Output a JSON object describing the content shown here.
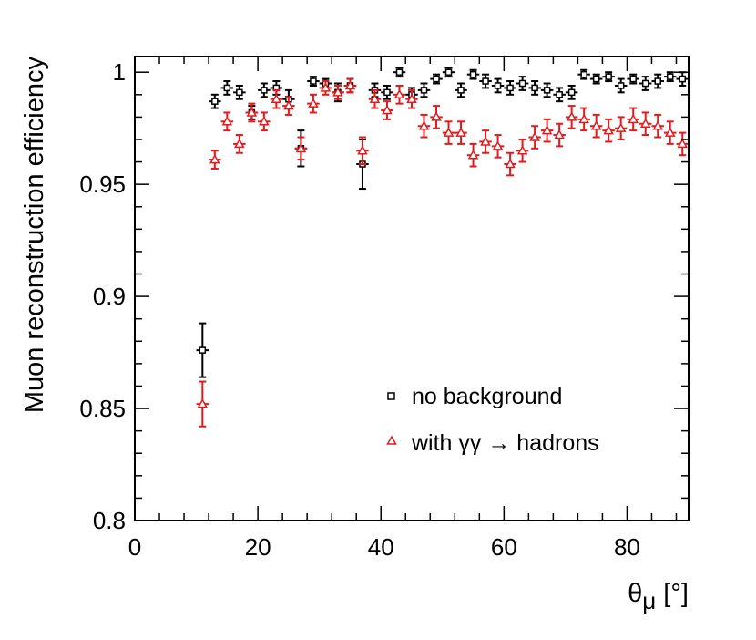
{
  "chart_data": {
    "type": "scatter",
    "title": "",
    "xlabel": "θμ [°]",
    "xlabel_main": "θ",
    "xlabel_sub": "μ",
    "xlabel_unit": " [°]",
    "ylabel": "Muon reconstruction efficiency",
    "xlim": [
      0,
      90
    ],
    "ylim": [
      0.8,
      1.007
    ],
    "x_ticks": [
      0,
      20,
      40,
      60,
      80
    ],
    "x_tick_labels": [
      "0",
      "20",
      "40",
      "60",
      "80"
    ],
    "y_ticks": [
      0.8,
      0.85,
      0.9,
      0.95,
      1.0
    ],
    "y_tick_labels": [
      "0.8",
      "0.85",
      "0.9",
      "0.95",
      "1"
    ],
    "grid": false,
    "legend_position": "bottom-right",
    "series": [
      {
        "name": "no background",
        "marker": "open-square",
        "color": "#000000",
        "x_error": 1,
        "points": [
          {
            "x": 11,
            "y": 0.876,
            "err": 0.012
          },
          {
            "x": 13,
            "y": 0.987,
            "err": 0.003
          },
          {
            "x": 15,
            "y": 0.993,
            "err": 0.003
          },
          {
            "x": 17,
            "y": 0.991,
            "err": 0.003
          },
          {
            "x": 19,
            "y": 0.982,
            "err": 0.003
          },
          {
            "x": 21,
            "y": 0.992,
            "err": 0.003
          },
          {
            "x": 23,
            "y": 0.993,
            "err": 0.003
          },
          {
            "x": 25,
            "y": 0.988,
            "err": 0.004
          },
          {
            "x": 27,
            "y": 0.966,
            "err": 0.008
          },
          {
            "x": 29,
            "y": 0.996,
            "err": 0.002
          },
          {
            "x": 31,
            "y": 0.995,
            "err": 0.002
          },
          {
            "x": 33,
            "y": 0.991,
            "err": 0.004
          },
          {
            "x": 35,
            "y": 0.994,
            "err": 0.003
          },
          {
            "x": 37,
            "y": 0.959,
            "err": 0.011
          },
          {
            "x": 39,
            "y": 0.992,
            "err": 0.003
          },
          {
            "x": 41,
            "y": 0.991,
            "err": 0.003
          },
          {
            "x": 43,
            "y": 1.0,
            "err": 0.002
          },
          {
            "x": 45,
            "y": 0.99,
            "err": 0.003
          },
          {
            "x": 47,
            "y": 0.992,
            "err": 0.003
          },
          {
            "x": 49,
            "y": 0.997,
            "err": 0.002
          },
          {
            "x": 51,
            "y": 1.0,
            "err": 0.002
          },
          {
            "x": 53,
            "y": 0.992,
            "err": 0.003
          },
          {
            "x": 55,
            "y": 0.999,
            "err": 0.002
          },
          {
            "x": 57,
            "y": 0.996,
            "err": 0.003
          },
          {
            "x": 59,
            "y": 0.994,
            "err": 0.003
          },
          {
            "x": 61,
            "y": 0.993,
            "err": 0.003
          },
          {
            "x": 63,
            "y": 0.995,
            "err": 0.003
          },
          {
            "x": 65,
            "y": 0.993,
            "err": 0.003
          },
          {
            "x": 67,
            "y": 0.992,
            "err": 0.003
          },
          {
            "x": 69,
            "y": 0.99,
            "err": 0.003
          },
          {
            "x": 71,
            "y": 0.991,
            "err": 0.003
          },
          {
            "x": 73,
            "y": 0.999,
            "err": 0.002
          },
          {
            "x": 75,
            "y": 0.997,
            "err": 0.002
          },
          {
            "x": 77,
            "y": 0.998,
            "err": 0.002
          },
          {
            "x": 79,
            "y": 0.994,
            "err": 0.003
          },
          {
            "x": 81,
            "y": 0.997,
            "err": 0.002
          },
          {
            "x": 83,
            "y": 0.995,
            "err": 0.003
          },
          {
            "x": 85,
            "y": 0.996,
            "err": 0.003
          },
          {
            "x": 87,
            "y": 0.998,
            "err": 0.002
          },
          {
            "x": 89,
            "y": 0.997,
            "err": 0.003
          }
        ]
      },
      {
        "name": "with γγ → hadrons",
        "marker": "open-triangle",
        "color": "#e31a1c",
        "x_error": 1,
        "points": [
          {
            "x": 11,
            "y": 0.852,
            "err": 0.01
          },
          {
            "x": 13,
            "y": 0.961,
            "err": 0.004
          },
          {
            "x": 15,
            "y": 0.978,
            "err": 0.004
          },
          {
            "x": 17,
            "y": 0.968,
            "err": 0.004
          },
          {
            "x": 19,
            "y": 0.982,
            "err": 0.004
          },
          {
            "x": 21,
            "y": 0.978,
            "err": 0.004
          },
          {
            "x": 23,
            "y": 0.988,
            "err": 0.004
          },
          {
            "x": 25,
            "y": 0.985,
            "err": 0.004
          },
          {
            "x": 27,
            "y": 0.966,
            "err": 0.005
          },
          {
            "x": 29,
            "y": 0.986,
            "err": 0.004
          },
          {
            "x": 31,
            "y": 0.993,
            "err": 0.003
          },
          {
            "x": 33,
            "y": 0.991,
            "err": 0.003
          },
          {
            "x": 35,
            "y": 0.994,
            "err": 0.003
          },
          {
            "x": 37,
            "y": 0.965,
            "err": 0.006
          },
          {
            "x": 39,
            "y": 0.988,
            "err": 0.004
          },
          {
            "x": 41,
            "y": 0.983,
            "err": 0.004
          },
          {
            "x": 43,
            "y": 0.99,
            "err": 0.004
          },
          {
            "x": 45,
            "y": 0.988,
            "err": 0.004
          },
          {
            "x": 47,
            "y": 0.976,
            "err": 0.005
          },
          {
            "x": 49,
            "y": 0.98,
            "err": 0.005
          },
          {
            "x": 51,
            "y": 0.973,
            "err": 0.005
          },
          {
            "x": 53,
            "y": 0.973,
            "err": 0.005
          },
          {
            "x": 55,
            "y": 0.963,
            "err": 0.005
          },
          {
            "x": 57,
            "y": 0.969,
            "err": 0.005
          },
          {
            "x": 59,
            "y": 0.967,
            "err": 0.005
          },
          {
            "x": 61,
            "y": 0.959,
            "err": 0.005
          },
          {
            "x": 63,
            "y": 0.965,
            "err": 0.005
          },
          {
            "x": 65,
            "y": 0.971,
            "err": 0.005
          },
          {
            "x": 67,
            "y": 0.974,
            "err": 0.005
          },
          {
            "x": 69,
            "y": 0.972,
            "err": 0.005
          },
          {
            "x": 71,
            "y": 0.98,
            "err": 0.005
          },
          {
            "x": 73,
            "y": 0.979,
            "err": 0.005
          },
          {
            "x": 75,
            "y": 0.976,
            "err": 0.005
          },
          {
            "x": 77,
            "y": 0.974,
            "err": 0.005
          },
          {
            "x": 79,
            "y": 0.975,
            "err": 0.005
          },
          {
            "x": 81,
            "y": 0.979,
            "err": 0.005
          },
          {
            "x": 83,
            "y": 0.977,
            "err": 0.005
          },
          {
            "x": 85,
            "y": 0.976,
            "err": 0.005
          },
          {
            "x": 87,
            "y": 0.973,
            "err": 0.005
          },
          {
            "x": 89,
            "y": 0.968,
            "err": 0.005
          }
        ]
      }
    ]
  }
}
